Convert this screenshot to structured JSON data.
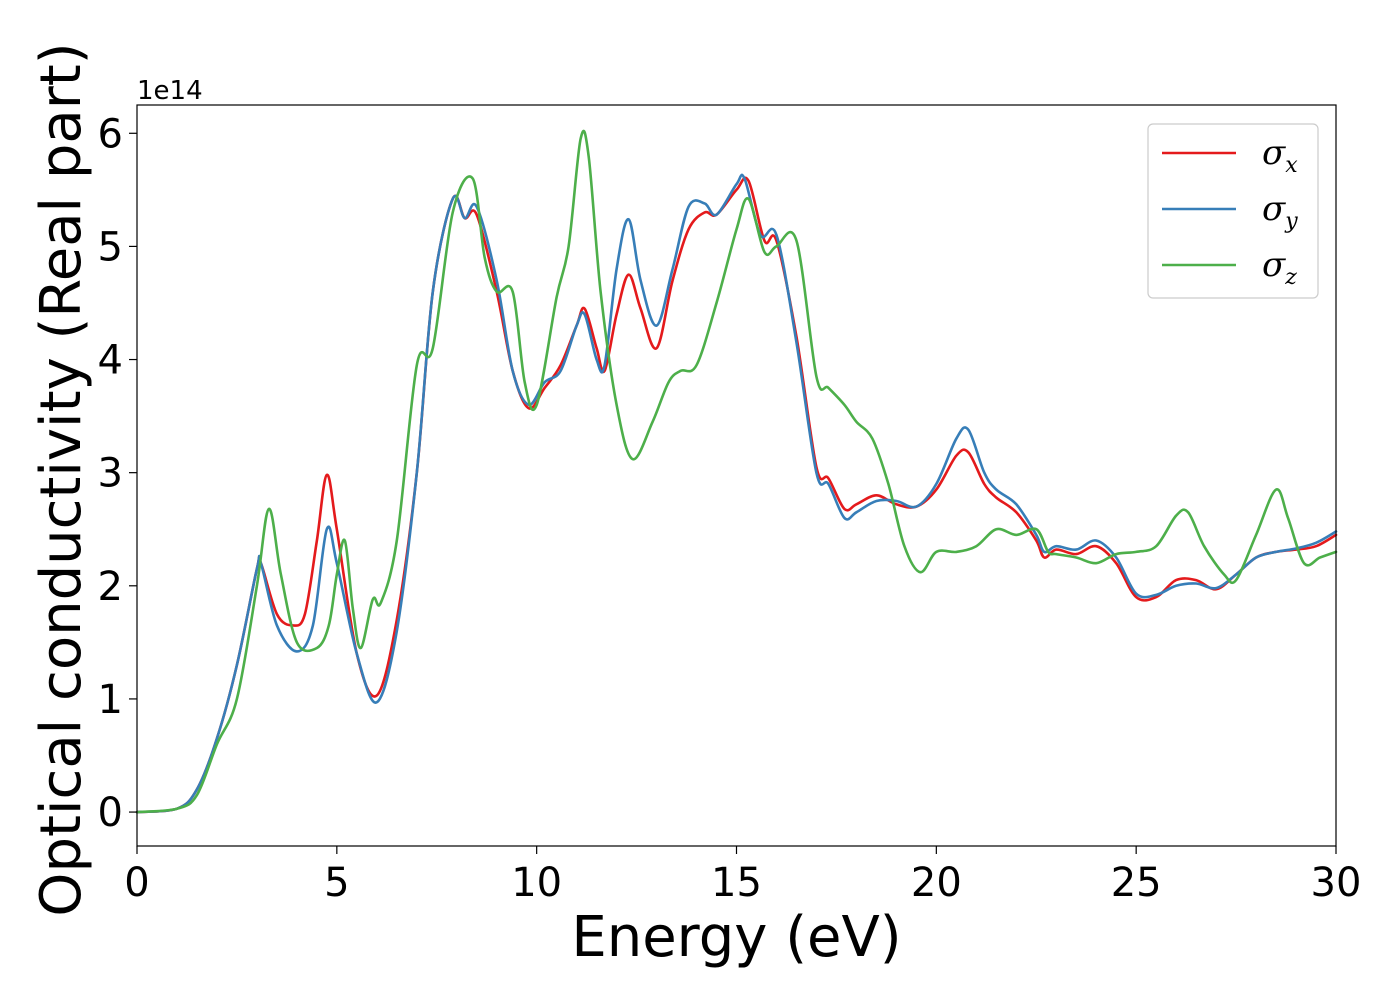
{
  "chart_data": {
    "type": "line",
    "xlabel": "Energy (eV)",
    "ylabel": "Optical conductivity (Real part)",
    "y_offset_text": "1e14",
    "xlim": [
      0,
      30
    ],
    "ylim": [
      -0.3,
      6.25
    ],
    "y_scale_factor": 100000000000000.0,
    "xticks": [
      0,
      5,
      10,
      15,
      20,
      25,
      30
    ],
    "xtick_labels": [
      "0",
      "5",
      "10",
      "15",
      "20",
      "25",
      "30"
    ],
    "yticks": [
      0,
      1,
      2,
      3,
      4,
      5,
      6
    ],
    "ytick_labels": [
      "0",
      "1",
      "2",
      "3",
      "4",
      "5",
      "6"
    ],
    "grid": false,
    "legend_position": "upper right",
    "series": [
      {
        "name": "σx",
        "symbol": "σ",
        "subscript": "x",
        "color": "#e41a1c",
        "points": [
          [
            0,
            0
          ],
          [
            1,
            0.03
          ],
          [
            1.5,
            0.2
          ],
          [
            2,
            0.65
          ],
          [
            2.5,
            1.3
          ],
          [
            3,
            2.15
          ],
          [
            3.1,
            2.2
          ],
          [
            3.5,
            1.75
          ],
          [
            3.9,
            1.65
          ],
          [
            4.2,
            1.75
          ],
          [
            4.5,
            2.4
          ],
          [
            4.75,
            2.98
          ],
          [
            5,
            2.5
          ],
          [
            5.5,
            1.4
          ],
          [
            6,
            1.03
          ],
          [
            6.5,
            1.7
          ],
          [
            7,
            3.0
          ],
          [
            7.4,
            4.6
          ],
          [
            7.9,
            5.42
          ],
          [
            8.2,
            5.25
          ],
          [
            8.5,
            5.28
          ],
          [
            9,
            4.6
          ],
          [
            9.4,
            3.9
          ],
          [
            9.8,
            3.57
          ],
          [
            10.2,
            3.75
          ],
          [
            10.6,
            3.95
          ],
          [
            11,
            4.3
          ],
          [
            11.2,
            4.45
          ],
          [
            11.5,
            4.1
          ],
          [
            11.7,
            3.9
          ],
          [
            12,
            4.4
          ],
          [
            12.3,
            4.75
          ],
          [
            12.6,
            4.45
          ],
          [
            13,
            4.1
          ],
          [
            13.4,
            4.7
          ],
          [
            13.8,
            5.15
          ],
          [
            14.2,
            5.3
          ],
          [
            14.5,
            5.28
          ],
          [
            15,
            5.5
          ],
          [
            15.3,
            5.58
          ],
          [
            15.7,
            5.05
          ],
          [
            16,
            5.05
          ],
          [
            16.5,
            4.2
          ],
          [
            17,
            3.05
          ],
          [
            17.3,
            2.95
          ],
          [
            17.7,
            2.68
          ],
          [
            18,
            2.72
          ],
          [
            18.5,
            2.8
          ],
          [
            19,
            2.72
          ],
          [
            19.5,
            2.7
          ],
          [
            20,
            2.85
          ],
          [
            20.5,
            3.15
          ],
          [
            20.8,
            3.18
          ],
          [
            21.2,
            2.9
          ],
          [
            21.5,
            2.78
          ],
          [
            22,
            2.65
          ],
          [
            22.5,
            2.4
          ],
          [
            22.7,
            2.25
          ],
          [
            23,
            2.32
          ],
          [
            23.5,
            2.28
          ],
          [
            24,
            2.35
          ],
          [
            24.5,
            2.2
          ],
          [
            25,
            1.9
          ],
          [
            25.5,
            1.9
          ],
          [
            26,
            2.05
          ],
          [
            26.5,
            2.05
          ],
          [
            27,
            1.97
          ],
          [
            27.5,
            2.1
          ],
          [
            28,
            2.25
          ],
          [
            28.5,
            2.3
          ],
          [
            29,
            2.32
          ],
          [
            29.5,
            2.35
          ],
          [
            30,
            2.45
          ]
        ]
      },
      {
        "name": "σy",
        "symbol": "σ",
        "subscript": "y",
        "color": "#377eb8",
        "points": [
          [
            0,
            0
          ],
          [
            1,
            0.03
          ],
          [
            1.5,
            0.2
          ],
          [
            2,
            0.65
          ],
          [
            2.5,
            1.3
          ],
          [
            3,
            2.15
          ],
          [
            3.1,
            2.2
          ],
          [
            3.5,
            1.65
          ],
          [
            4,
            1.42
          ],
          [
            4.4,
            1.65
          ],
          [
            4.75,
            2.5
          ],
          [
            5,
            2.2
          ],
          [
            5.5,
            1.4
          ],
          [
            6,
            0.97
          ],
          [
            6.5,
            1.6
          ],
          [
            7,
            3.0
          ],
          [
            7.4,
            4.6
          ],
          [
            7.9,
            5.42
          ],
          [
            8.2,
            5.25
          ],
          [
            8.5,
            5.35
          ],
          [
            9,
            4.7
          ],
          [
            9.4,
            3.9
          ],
          [
            9.8,
            3.6
          ],
          [
            10.2,
            3.8
          ],
          [
            10.6,
            3.9
          ],
          [
            11,
            4.3
          ],
          [
            11.2,
            4.4
          ],
          [
            11.5,
            4.0
          ],
          [
            11.7,
            3.95
          ],
          [
            12,
            4.8
          ],
          [
            12.3,
            5.24
          ],
          [
            12.6,
            4.7
          ],
          [
            13,
            4.3
          ],
          [
            13.4,
            4.8
          ],
          [
            13.8,
            5.35
          ],
          [
            14.2,
            5.38
          ],
          [
            14.5,
            5.28
          ],
          [
            15,
            5.55
          ],
          [
            15.2,
            5.6
          ],
          [
            15.6,
            5.1
          ],
          [
            16,
            5.1
          ],
          [
            16.5,
            4.15
          ],
          [
            17,
            3.0
          ],
          [
            17.3,
            2.9
          ],
          [
            17.7,
            2.6
          ],
          [
            18,
            2.65
          ],
          [
            18.5,
            2.75
          ],
          [
            19,
            2.75
          ],
          [
            19.5,
            2.7
          ],
          [
            20,
            2.9
          ],
          [
            20.5,
            3.3
          ],
          [
            20.8,
            3.38
          ],
          [
            21.2,
            3.0
          ],
          [
            21.5,
            2.85
          ],
          [
            22,
            2.72
          ],
          [
            22.5,
            2.45
          ],
          [
            22.7,
            2.3
          ],
          [
            23,
            2.35
          ],
          [
            23.5,
            2.32
          ],
          [
            24,
            2.4
          ],
          [
            24.5,
            2.25
          ],
          [
            25,
            1.93
          ],
          [
            25.5,
            1.92
          ],
          [
            26,
            2.0
          ],
          [
            26.5,
            2.02
          ],
          [
            27,
            1.98
          ],
          [
            27.5,
            2.1
          ],
          [
            28,
            2.25
          ],
          [
            28.5,
            2.3
          ],
          [
            29,
            2.33
          ],
          [
            29.5,
            2.38
          ],
          [
            30,
            2.48
          ]
        ]
      },
      {
        "name": "σz",
        "symbol": "σ",
        "subscript": "z",
        "color": "#4daf4a",
        "points": [
          [
            0,
            0
          ],
          [
            1,
            0.03
          ],
          [
            1.5,
            0.15
          ],
          [
            2,
            0.6
          ],
          [
            2.5,
            1.0
          ],
          [
            3,
            2.0
          ],
          [
            3.3,
            2.68
          ],
          [
            3.6,
            2.1
          ],
          [
            4,
            1.5
          ],
          [
            4.5,
            1.45
          ],
          [
            4.8,
            1.65
          ],
          [
            5,
            2.1
          ],
          [
            5.2,
            2.4
          ],
          [
            5.4,
            1.8
          ],
          [
            5.6,
            1.45
          ],
          [
            5.9,
            1.88
          ],
          [
            6.1,
            1.85
          ],
          [
            6.5,
            2.4
          ],
          [
            7,
            3.95
          ],
          [
            7.4,
            4.1
          ],
          [
            7.9,
            5.3
          ],
          [
            8.4,
            5.6
          ],
          [
            8.7,
            4.9
          ],
          [
            9,
            4.6
          ],
          [
            9.4,
            4.6
          ],
          [
            9.7,
            3.8
          ],
          [
            10,
            3.6
          ],
          [
            10.5,
            4.55
          ],
          [
            10.8,
            5.0
          ],
          [
            11.1,
            5.95
          ],
          [
            11.3,
            5.8
          ],
          [
            11.6,
            4.6
          ],
          [
            12,
            3.6
          ],
          [
            12.4,
            3.12
          ],
          [
            12.9,
            3.45
          ],
          [
            13.3,
            3.8
          ],
          [
            13.6,
            3.9
          ],
          [
            14,
            3.95
          ],
          [
            14.5,
            4.5
          ],
          [
            15,
            5.15
          ],
          [
            15.3,
            5.42
          ],
          [
            15.7,
            4.95
          ],
          [
            16,
            5.0
          ],
          [
            16.5,
            5.05
          ],
          [
            17,
            3.85
          ],
          [
            17.3,
            3.75
          ],
          [
            17.7,
            3.6
          ],
          [
            18,
            3.45
          ],
          [
            18.4,
            3.3
          ],
          [
            18.8,
            2.9
          ],
          [
            19.2,
            2.35
          ],
          [
            19.6,
            2.12
          ],
          [
            20,
            2.3
          ],
          [
            20.5,
            2.3
          ],
          [
            21,
            2.35
          ],
          [
            21.5,
            2.5
          ],
          [
            22,
            2.45
          ],
          [
            22.5,
            2.5
          ],
          [
            22.8,
            2.3
          ],
          [
            23,
            2.28
          ],
          [
            23.5,
            2.25
          ],
          [
            24,
            2.2
          ],
          [
            24.5,
            2.28
          ],
          [
            25,
            2.3
          ],
          [
            25.5,
            2.35
          ],
          [
            26,
            2.62
          ],
          [
            26.3,
            2.65
          ],
          [
            26.7,
            2.35
          ],
          [
            27.2,
            2.1
          ],
          [
            27.5,
            2.05
          ],
          [
            28,
            2.45
          ],
          [
            28.5,
            2.85
          ],
          [
            28.8,
            2.6
          ],
          [
            29.2,
            2.2
          ],
          [
            29.6,
            2.25
          ],
          [
            30,
            2.3
          ]
        ]
      }
    ]
  }
}
